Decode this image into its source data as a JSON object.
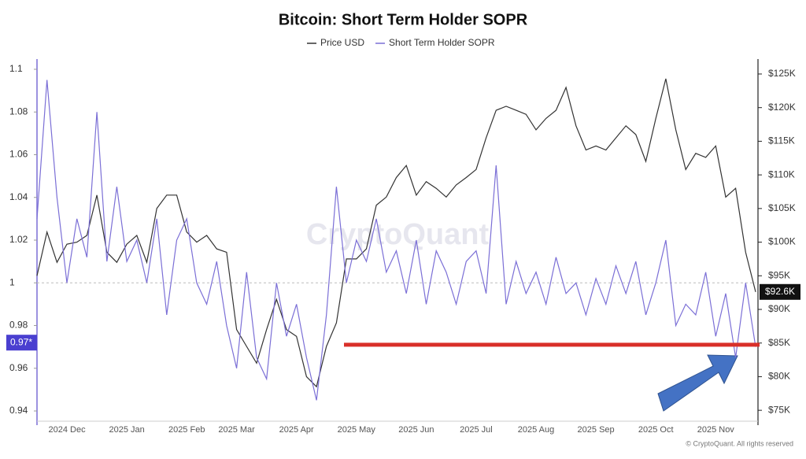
{
  "chart_data": {
    "type": "line",
    "title": "Bitcoin: Short Term Holder SOPR",
    "watermark": "CryptoQuant",
    "footer": "© CryptoQuant. All rights reserved",
    "categories": [
      null,
      null,
      null,
      "2024 Dec",
      null,
      null,
      null,
      null,
      null,
      "2025 Jan",
      null,
      null,
      null,
      null,
      null,
      "2025 Feb",
      null,
      null,
      null,
      null,
      "2025 Mar",
      null,
      null,
      null,
      null,
      null,
      "2025 Apr",
      null,
      null,
      null,
      null,
      null,
      "2025 May",
      null,
      null,
      null,
      null,
      null,
      "2025 Jun",
      null,
      null,
      null,
      null,
      null,
      "2025 Jul",
      null,
      null,
      null,
      null,
      null,
      "2025 Aug",
      null,
      null,
      null,
      null,
      null,
      "2025 Sep",
      null,
      null,
      null,
      null,
      null,
      "2025 Oct",
      null,
      null,
      null,
      null,
      null,
      "2025 Nov",
      null,
      null,
      null,
      null
    ],
    "series": [
      {
        "name": "Price USD",
        "color": "#333333",
        "axis": "y2",
        "values": [
          95000,
          101500,
          97000,
          99700,
          100000,
          101000,
          107000,
          98500,
          97000,
          99700,
          101000,
          97000,
          105000,
          107000,
          107000,
          101500,
          100000,
          101000,
          99000,
          98500,
          87000,
          84500,
          82000,
          87000,
          91500,
          87000,
          86000,
          80000,
          78500,
          84500,
          88000,
          97500,
          97500,
          99000,
          105500,
          106700,
          109600,
          111400,
          107000,
          109000,
          108000,
          106700,
          108500,
          109600,
          110800,
          115500,
          119600,
          120200,
          119600,
          119000,
          116700,
          118400,
          119600,
          123000,
          117300,
          113700,
          114300,
          113700,
          115500,
          117300,
          116000,
          112000,
          118400,
          124300,
          116700,
          110800,
          113200,
          112600,
          114300,
          106700,
          108000,
          98500,
          92600
        ]
      },
      {
        "name": "Short Term Holder SOPR",
        "color": "#7b6fd6",
        "values": [
          1.03,
          1.095,
          1.04,
          1.0,
          1.03,
          1.012,
          1.08,
          1.01,
          1.045,
          1.01,
          1.02,
          1.0,
          1.03,
          0.985,
          1.02,
          1.03,
          1.0,
          0.99,
          1.01,
          0.98,
          0.96,
          1.005,
          0.965,
          0.955,
          1.0,
          0.975,
          0.99,
          0.965,
          0.945,
          0.985,
          1.045,
          1.0,
          1.02,
          1.01,
          1.03,
          1.005,
          1.015,
          0.995,
          1.02,
          0.99,
          1.015,
          1.005,
          0.99,
          1.01,
          1.015,
          0.995,
          1.055,
          0.99,
          1.01,
          0.995,
          1.005,
          0.99,
          1.012,
          0.995,
          1.0,
          0.985,
          1.002,
          0.99,
          1.008,
          0.995,
          1.01,
          0.985,
          1.0,
          1.02,
          0.98,
          0.99,
          0.985,
          1.005,
          0.975,
          0.995,
          0.965,
          1.0,
          0.97
        ]
      }
    ],
    "ylim": [
      0.94,
      1.1
    ],
    "yticks": [
      0.94,
      0.96,
      0.98,
      1,
      1.02,
      1.04,
      1.06,
      1.08,
      1.1
    ],
    "y2lim": [
      74900,
      125700
    ],
    "y2ticks": [
      {
        "value": 75000,
        "label": "$75K"
      },
      {
        "value": 80000,
        "label": "$80K"
      },
      {
        "value": 85000,
        "label": "$85K"
      },
      {
        "value": 90000,
        "label": "$90K"
      },
      {
        "value": 95000,
        "label": "$95K"
      },
      {
        "value": 100000,
        "label": "$100K"
      },
      {
        "value": 105000,
        "label": "$105K"
      },
      {
        "value": 110000,
        "label": "$110K"
      },
      {
        "value": 115000,
        "label": "$115K"
      },
      {
        "value": 120000,
        "label": "$120K"
      },
      {
        "value": 125000,
        "label": "$125K"
      }
    ],
    "reference_line": 1,
    "current_sopr": {
      "value": 0.972,
      "label": "0.97*",
      "color": "#4a3fd0"
    },
    "current_price": {
      "value": 92600,
      "label": "$92.6K",
      "color": "#111111"
    },
    "support_line": {
      "value": 0.971,
      "color": "#d9302a"
    }
  }
}
